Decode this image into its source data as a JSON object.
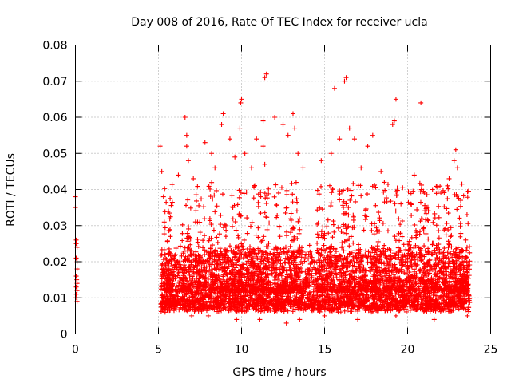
{
  "chart_data": {
    "type": "scatter",
    "title": "Day 008 of 2016, Rate Of TEC Index for receiver ucla",
    "xlabel": "GPS time / hours",
    "ylabel": "ROTI / TECUs",
    "xlim": [
      0,
      25
    ],
    "ylim": [
      0,
      0.08
    ],
    "xticks": [
      0,
      5,
      10,
      15,
      20,
      25
    ],
    "xtick_labels": [
      "0",
      "5",
      "10",
      "15",
      "20",
      "25"
    ],
    "yticks": [
      0,
      0.01,
      0.02,
      0.03,
      0.04,
      0.05,
      0.06,
      0.07,
      0.08
    ],
    "ytick_labels": [
      "0",
      "0.01",
      "0.02",
      "0.03",
      "0.04",
      "0.05",
      "0.06",
      "0.07",
      "0.08"
    ],
    "grid": true,
    "marker": "+",
    "marker_color": "#ff0000",
    "series": [
      {
        "name": "ROTI",
        "points": [
          [
            0.0,
            0.035
          ],
          [
            0.0,
            0.038
          ],
          [
            0.05,
            0.026
          ],
          [
            0.1,
            0.024
          ],
          [
            0.05,
            0.021
          ],
          [
            0.1,
            0.018
          ],
          [
            0.05,
            0.016
          ],
          [
            0.1,
            0.014
          ],
          [
            0.05,
            0.013
          ],
          [
            0.1,
            0.012
          ],
          [
            0.05,
            0.011
          ],
          [
            0.1,
            0.009
          ],
          [
            0.05,
            0.025
          ],
          [
            0.1,
            0.02
          ],
          [
            0.08,
            0.015
          ],
          [
            0.03,
            0.01
          ],
          [
            5.1,
            0.052
          ],
          [
            5.2,
            0.045
          ],
          [
            5.3,
            0.038
          ],
          [
            5.6,
            0.034
          ],
          [
            6.2,
            0.044
          ],
          [
            6.6,
            0.06
          ],
          [
            6.7,
            0.055
          ],
          [
            6.7,
            0.052
          ],
          [
            6.8,
            0.048
          ],
          [
            7.1,
            0.043
          ],
          [
            7.8,
            0.053
          ],
          [
            8.2,
            0.05
          ],
          [
            8.4,
            0.046
          ],
          [
            8.8,
            0.058
          ],
          [
            8.9,
            0.061
          ],
          [
            9.3,
            0.054
          ],
          [
            9.6,
            0.049
          ],
          [
            9.9,
            0.057
          ],
          [
            9.95,
            0.064
          ],
          [
            10.0,
            0.065
          ],
          [
            10.2,
            0.05
          ],
          [
            10.6,
            0.046
          ],
          [
            10.9,
            0.054
          ],
          [
            11.3,
            0.059
          ],
          [
            11.4,
            0.071
          ],
          [
            11.5,
            0.072
          ],
          [
            11.3,
            0.052
          ],
          [
            11.4,
            0.047
          ],
          [
            12.0,
            0.06
          ],
          [
            12.5,
            0.058
          ],
          [
            12.8,
            0.055
          ],
          [
            13.1,
            0.061
          ],
          [
            13.2,
            0.057
          ],
          [
            13.4,
            0.05
          ],
          [
            13.7,
            0.046
          ],
          [
            14.8,
            0.048
          ],
          [
            15.4,
            0.05
          ],
          [
            15.6,
            0.068
          ],
          [
            15.9,
            0.054
          ],
          [
            16.2,
            0.07
          ],
          [
            16.3,
            0.071
          ],
          [
            16.5,
            0.057
          ],
          [
            16.8,
            0.054
          ],
          [
            17.2,
            0.046
          ],
          [
            17.6,
            0.052
          ],
          [
            17.9,
            0.055
          ],
          [
            18.4,
            0.045
          ],
          [
            18.6,
            0.042
          ],
          [
            19.1,
            0.058
          ],
          [
            19.2,
            0.059
          ],
          [
            19.3,
            0.065
          ],
          [
            19.6,
            0.036
          ],
          [
            20.2,
            0.036
          ],
          [
            20.4,
            0.044
          ],
          [
            20.8,
            0.064
          ],
          [
            21.0,
            0.039
          ],
          [
            21.5,
            0.04
          ],
          [
            22.0,
            0.039
          ],
          [
            22.5,
            0.043
          ],
          [
            22.8,
            0.048
          ],
          [
            22.9,
            0.051
          ],
          [
            23.0,
            0.046
          ],
          [
            23.2,
            0.037
          ],
          [
            23.5,
            0.026
          ],
          [
            5.4,
            0.006
          ],
          [
            7.0,
            0.005
          ],
          [
            8.0,
            0.005
          ],
          [
            9.7,
            0.004
          ],
          [
            11.1,
            0.004
          ],
          [
            12.7,
            0.003
          ],
          [
            13.5,
            0.004
          ],
          [
            15.0,
            0.005
          ],
          [
            17.0,
            0.004
          ],
          [
            19.3,
            0.005
          ],
          [
            21.6,
            0.004
          ],
          [
            23.6,
            0.005
          ]
        ]
      }
    ]
  }
}
